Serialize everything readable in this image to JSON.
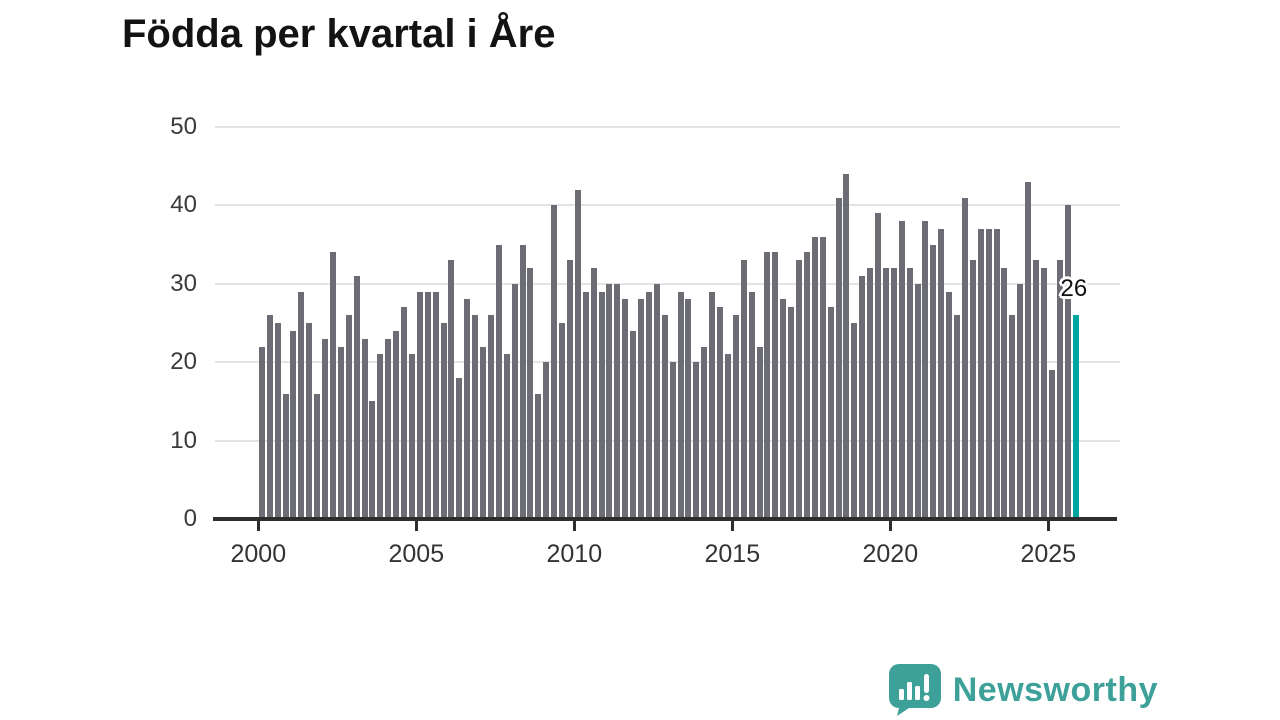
{
  "title": "Födda per kvartal i Åre",
  "annotation": {
    "label": "26"
  },
  "branding": {
    "name": "Newsworthy",
    "icon": "speech-bubble-bar-chart-icon"
  },
  "colors": {
    "bar": "#6c6c74",
    "highlight": "#00a4a0",
    "grid": "#e4e4e4",
    "axis": "#2d2d2d",
    "tick_text": "#333333",
    "title_text": "#131313",
    "brand_teal": "#3da19a"
  },
  "chart_data": {
    "type": "bar",
    "title": "Födda per kvartal i Åre",
    "frequency": "quarterly",
    "x_start": {
      "year": 2000,
      "quarter": 1
    },
    "x_end": {
      "year": 2025,
      "quarter": 4
    },
    "values": [
      22,
      26,
      25,
      16,
      24,
      29,
      25,
      16,
      23,
      34,
      22,
      26,
      31,
      23,
      15,
      21,
      23,
      24,
      27,
      21,
      29,
      29,
      29,
      25,
      33,
      18,
      28,
      26,
      22,
      26,
      35,
      21,
      30,
      35,
      32,
      16,
      20,
      40,
      25,
      33,
      42,
      29,
      32,
      29,
      30,
      30,
      28,
      24,
      28,
      29,
      30,
      26,
      20,
      29,
      28,
      20,
      22,
      29,
      27,
      21,
      26,
      33,
      29,
      22,
      34,
      34,
      28,
      27,
      33,
      34,
      36,
      36,
      27,
      41,
      44,
      25,
      31,
      32,
      39,
      32,
      32,
      38,
      32,
      30,
      38,
      35,
      37,
      29,
      26,
      41,
      33,
      37,
      37,
      37,
      32,
      26,
      30,
      43,
      33,
      32,
      19,
      33,
      40,
      26
    ],
    "highlight_last": true,
    "last_value_label": "26",
    "y_ticks": [
      0,
      10,
      20,
      30,
      40,
      50
    ],
    "ylim": [
      0,
      50
    ],
    "x_tick_years": [
      2000,
      2005,
      2010,
      2015,
      2020,
      2025
    ],
    "grid": "horizontal",
    "legend": "none",
    "xlabel": "",
    "ylabel": ""
  }
}
